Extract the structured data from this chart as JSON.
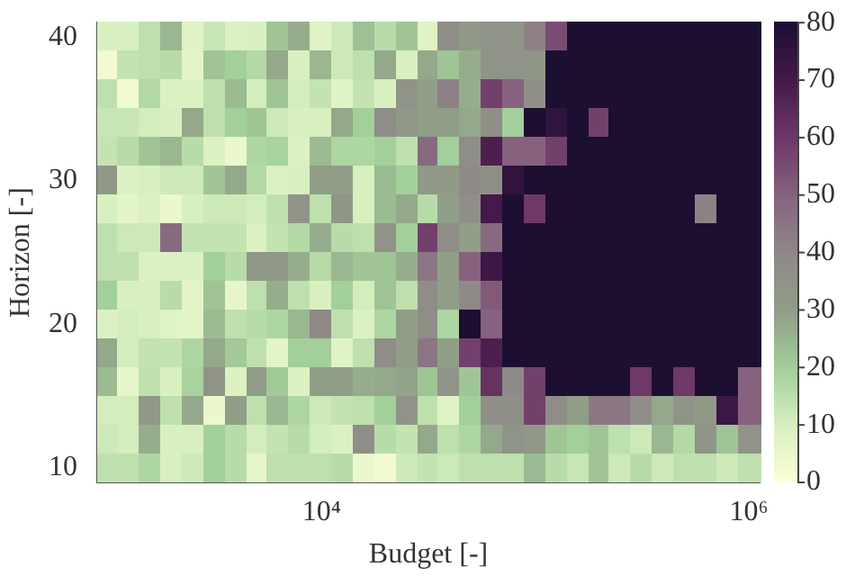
{
  "chart_data": {
    "type": "heatmap",
    "xlabel": "Budget [-]",
    "ylabel": "Horizon [-]",
    "log": "x",
    "xlim": [
      891,
      1122000
    ],
    "xticks": [
      {
        "value": 10000,
        "label": "10⁴"
      },
      {
        "value": 1000000,
        "label": "10⁶"
      }
    ],
    "clim": [
      0,
      80
    ],
    "cticks": [
      0,
      10,
      20,
      30,
      40,
      50,
      60,
      70,
      80
    ],
    "x": [
      1000,
      1259,
      1585,
      1995,
      2512,
      3162,
      3981,
      5012,
      6310,
      7943,
      10000,
      12589,
      15849,
      19953,
      25119,
      31623,
      39811,
      50119,
      63096,
      79433,
      100000,
      125893,
      158489,
      199526,
      251189,
      316228,
      398107,
      501187,
      630957,
      794328,
      1000000
    ],
    "y_categories": [
      "40",
      null,
      null,
      null,
      null,
      "30",
      null,
      null,
      null,
      null,
      "20",
      null,
      null,
      null,
      null,
      "10"
    ],
    "cells": [
      [
        10,
        10,
        15,
        25,
        8,
        13,
        9,
        10,
        22,
        27,
        8,
        12,
        23,
        16,
        22,
        8,
        38,
        32,
        35,
        35,
        42,
        55,
        80,
        80,
        80,
        80,
        80,
        80,
        80,
        80,
        80
      ],
      [
        3,
        14,
        15,
        16,
        7,
        22,
        20,
        17,
        28,
        10,
        25,
        12,
        15,
        28,
        10,
        28,
        22,
        27,
        35,
        35,
        34,
        80,
        80,
        80,
        80,
        80,
        80,
        80,
        80,
        80,
        80
      ],
      [
        15,
        3,
        17,
        9,
        9,
        15,
        24,
        11,
        22,
        11,
        14,
        8,
        14,
        10,
        35,
        30,
        42,
        27,
        58,
        50,
        37,
        80,
        80,
        80,
        80,
        80,
        80,
        80,
        80,
        80,
        80
      ],
      [
        13,
        13,
        11,
        10,
        28,
        15,
        20,
        22,
        12,
        10,
        10,
        28,
        20,
        38,
        33,
        30,
        30,
        28,
        37,
        20,
        80,
        75,
        80,
        58,
        80,
        80,
        80,
        80,
        80,
        80,
        80
      ],
      [
        14,
        16,
        22,
        25,
        16,
        9,
        5,
        18,
        19,
        9,
        24,
        18,
        18,
        20,
        15,
        48,
        20,
        38,
        68,
        50,
        50,
        58,
        80,
        80,
        80,
        80,
        80,
        80,
        80,
        80,
        80
      ],
      [
        33,
        9,
        10,
        12,
        12,
        22,
        28,
        17,
        9,
        10,
        30,
        30,
        10,
        24,
        20,
        33,
        32,
        40,
        37,
        75,
        80,
        80,
        80,
        80,
        80,
        80,
        80,
        80,
        80,
        80,
        80
      ],
      [
        10,
        7,
        9,
        5,
        10,
        12,
        12,
        11,
        15,
        35,
        15,
        34,
        10,
        24,
        28,
        16,
        30,
        37,
        70,
        80,
        60,
        80,
        80,
        80,
        80,
        80,
        80,
        80,
        42,
        80,
        80
      ],
      [
        15,
        12,
        12,
        48,
        14,
        14,
        14,
        9,
        14,
        17,
        27,
        16,
        15,
        35,
        20,
        58,
        38,
        30,
        48,
        80,
        80,
        80,
        80,
        80,
        80,
        80,
        80,
        80,
        80,
        80,
        80
      ],
      [
        15,
        15,
        9,
        9,
        9,
        20,
        16,
        33,
        33,
        27,
        16,
        25,
        22,
        22,
        27,
        45,
        30,
        50,
        72,
        80,
        80,
        80,
        80,
        80,
        80,
        80,
        80,
        80,
        80,
        80,
        80
      ],
      [
        20,
        10,
        10,
        16,
        7,
        22,
        6,
        15,
        27,
        15,
        10,
        20,
        11,
        22,
        15,
        38,
        30,
        40,
        52,
        80,
        80,
        80,
        80,
        80,
        80,
        80,
        80,
        80,
        80,
        80,
        80
      ],
      [
        9,
        11,
        10,
        8,
        7,
        24,
        15,
        16,
        18,
        25,
        40,
        15,
        9,
        18,
        30,
        38,
        18,
        80,
        50,
        80,
        80,
        80,
        80,
        80,
        80,
        80,
        80,
        80,
        80,
        80,
        80
      ],
      [
        28,
        11,
        14,
        14,
        18,
        28,
        21,
        15,
        7,
        20,
        20,
        8,
        15,
        38,
        30,
        45,
        30,
        58,
        68,
        80,
        80,
        80,
        80,
        80,
        80,
        80,
        80,
        80,
        80,
        80,
        80
      ],
      [
        24,
        6,
        15,
        10,
        19,
        35,
        9,
        31,
        21,
        9,
        30,
        30,
        27,
        28,
        29,
        22,
        35,
        22,
        62,
        40,
        58,
        80,
        80,
        80,
        80,
        60,
        80,
        60,
        80,
        80,
        50
      ],
      [
        11,
        11,
        33,
        15,
        28,
        5,
        30,
        15,
        25,
        18,
        12,
        14,
        15,
        20,
        35,
        15,
        8,
        20,
        37,
        37,
        58,
        38,
        30,
        45,
        45,
        38,
        28,
        35,
        32,
        72,
        50
      ],
      [
        12,
        11,
        27,
        10,
        10,
        20,
        16,
        11,
        14,
        16,
        11,
        9,
        38,
        16,
        14,
        28,
        15,
        18,
        28,
        35,
        33,
        22,
        20,
        22,
        15,
        12,
        25,
        17,
        35,
        22,
        35
      ],
      [
        15,
        15,
        18,
        10,
        12,
        20,
        16,
        6,
        15,
        15,
        15,
        16,
        5,
        3,
        12,
        14,
        12,
        15,
        15,
        15,
        24,
        16,
        13,
        22,
        12,
        16,
        12,
        15,
        15,
        12,
        15
      ]
    ]
  }
}
